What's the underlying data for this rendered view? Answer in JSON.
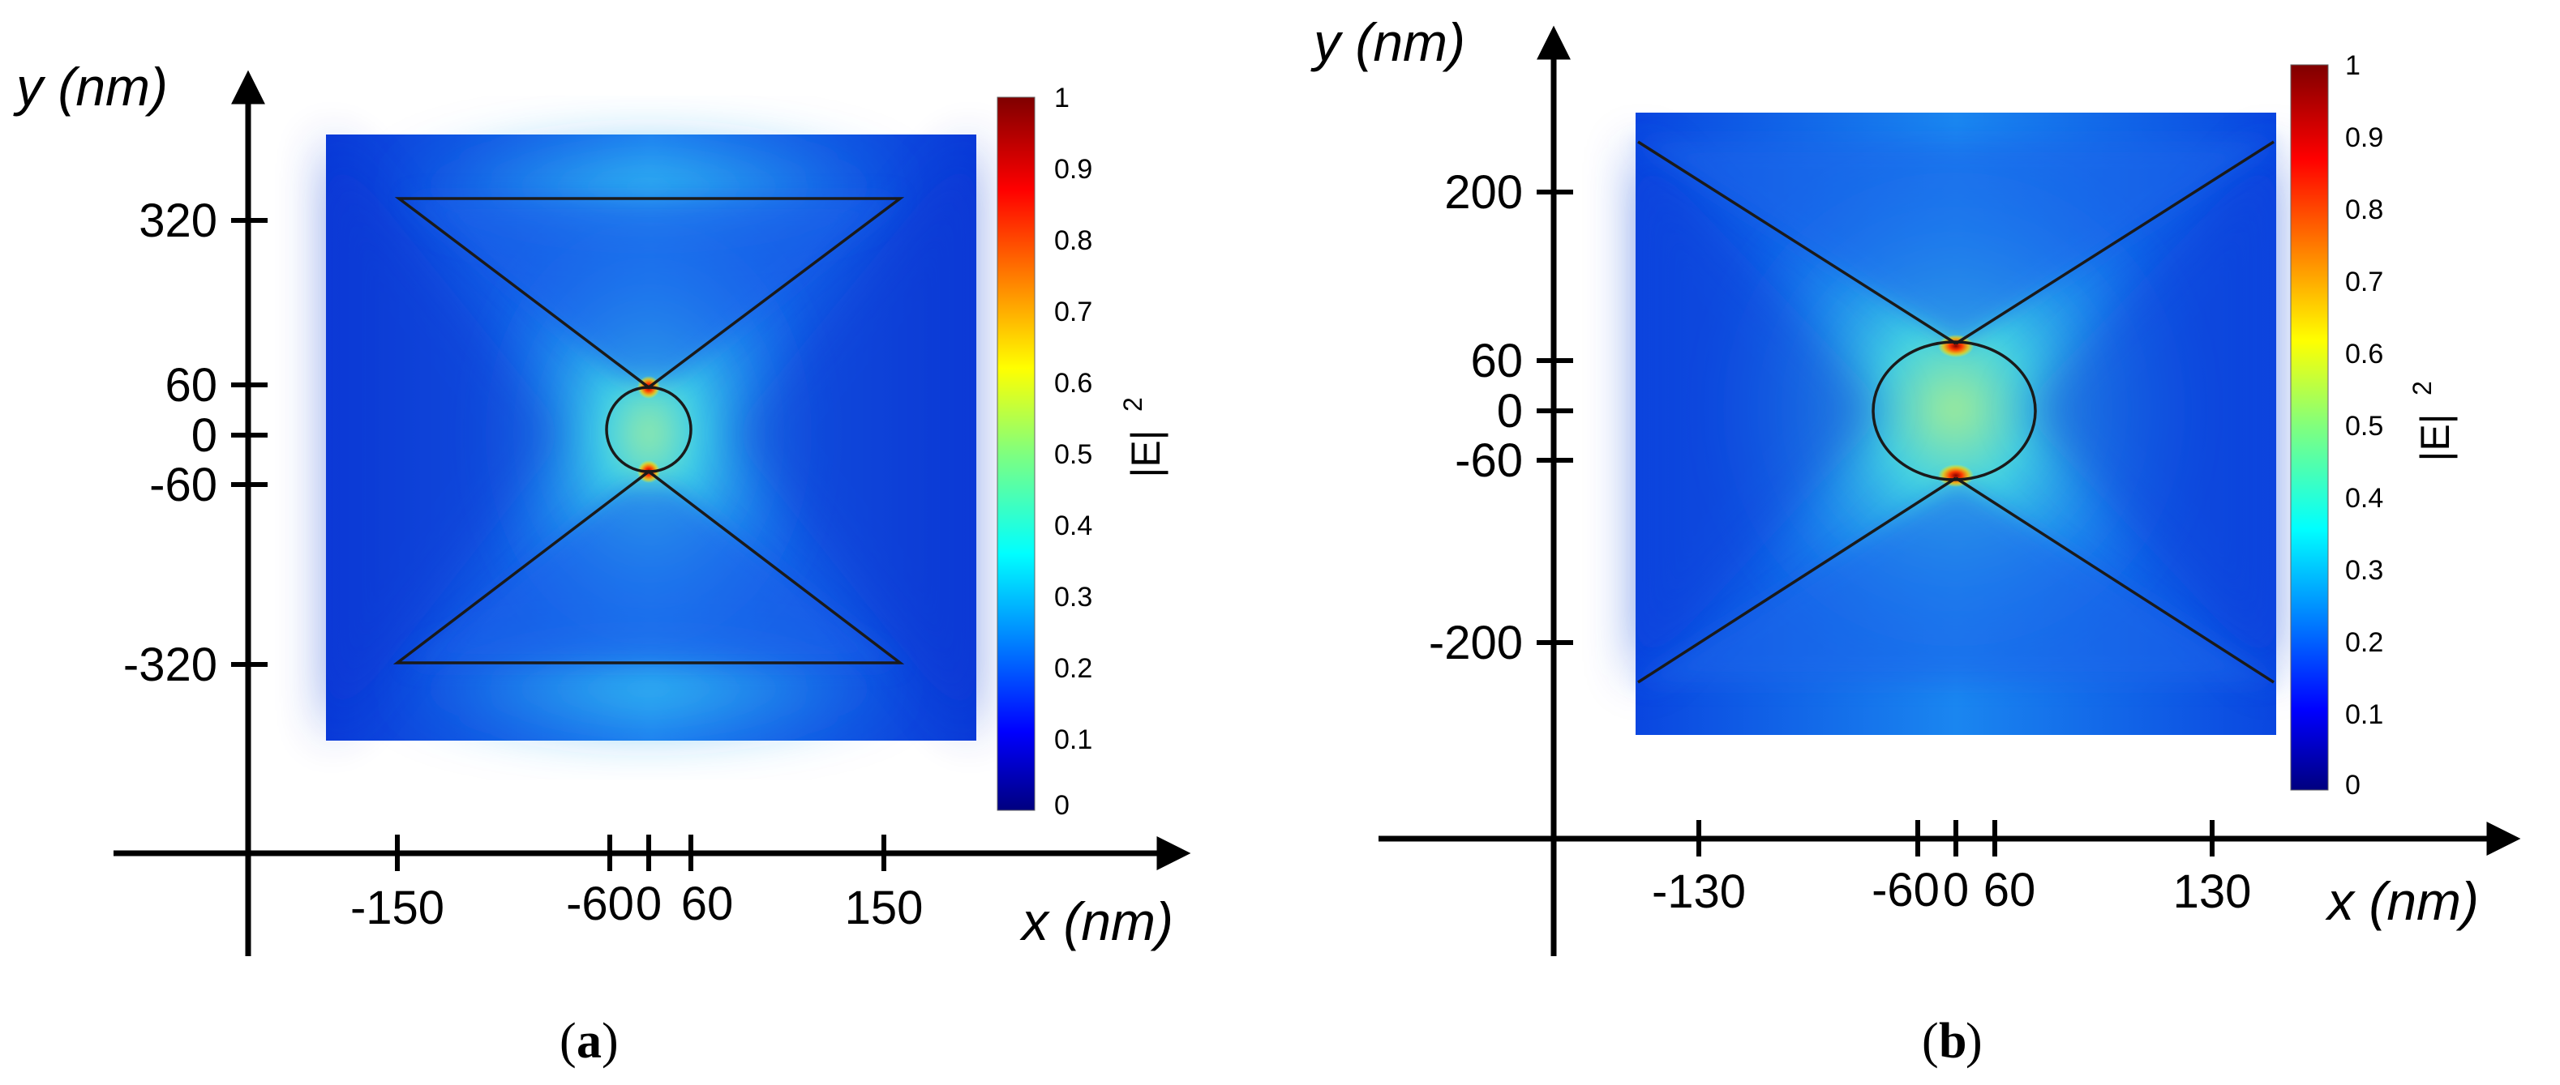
{
  "panels": [
    {
      "id": "a",
      "label": "a",
      "x_axis_title": "x (nm)",
      "y_axis_title": "y (nm)",
      "x_ticks": [
        "-150",
        "-60",
        "0",
        "60",
        "150"
      ],
      "y_ticks": [
        "320",
        "60",
        "0",
        "-60",
        "-320"
      ],
      "colorbar": {
        "title": "|E|",
        "superscript": "2",
        "ticks": [
          "1",
          "0.9",
          "0.8",
          "0.7",
          "0.6",
          "0.5",
          "0.4",
          "0.3",
          "0.2",
          "0.1",
          "0"
        ]
      }
    },
    {
      "id": "b",
      "label": "b",
      "x_axis_title": "x (nm)",
      "y_axis_title": "y (nm)",
      "x_ticks": [
        "-130",
        "-60",
        "0",
        "60",
        "130"
      ],
      "y_ticks": [
        "200",
        "60",
        "0",
        "-60",
        "-200"
      ],
      "colorbar": {
        "title": "|E|",
        "superscript": "2",
        "ticks": [
          "1",
          "0.9",
          "0.8",
          "0.7",
          "0.6",
          "0.5",
          "0.4",
          "0.3",
          "0.2",
          "0.1",
          "0"
        ]
      }
    }
  ],
  "colors": {
    "jet_low": "#00007f",
    "jet_mid": "#39c6e8",
    "jet_high": "#800000",
    "field_background": "#0a3ff0"
  }
}
